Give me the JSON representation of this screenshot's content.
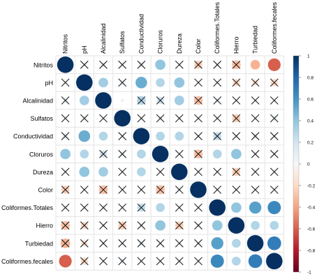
{
  "chart_data": {
    "type": "heatmap",
    "variables": [
      "Nitritos",
      "pH",
      "Alcalinidad",
      "Sulfatos",
      "Conductividad",
      "Cloruros",
      "Dureza",
      "Color",
      "Coliformes.Totales",
      "Hierro",
      "Turbiedad",
      "Coliformes.fecales"
    ],
    "matrix": [
      [
        1,
        0.05,
        0.1,
        -0.05,
        0.1,
        0.4,
        0.05,
        -0.25,
        0.05,
        -0.3,
        -0.35,
        -0.6
      ],
      [
        0.05,
        1,
        0.35,
        0.1,
        0.5,
        0.3,
        0.4,
        -0.05,
        0.05,
        -0.2,
        -0.15,
        -0.2
      ],
      [
        0.1,
        0.35,
        1,
        0.05,
        0.3,
        0.2,
        0.35,
        -0.3,
        0.1,
        0.05,
        0.05,
        0.05
      ],
      [
        -0.05,
        0.1,
        0.05,
        1,
        0.05,
        0.1,
        0.05,
        0.05,
        0.05,
        -0.25,
        0.05,
        0.1
      ],
      [
        0.1,
        0.5,
        0.3,
        0.05,
        1,
        0.3,
        0.3,
        0.05,
        0.25,
        -0.05,
        0.1,
        0.05
      ],
      [
        0.4,
        0.3,
        0.2,
        0.1,
        0.3,
        1,
        0.05,
        -0.3,
        0.3,
        0.4,
        0.05,
        0.05
      ],
      [
        0.05,
        0.4,
        0.35,
        0.05,
        0.3,
        0.05,
        1,
        0.05,
        0.05,
        -0.25,
        0.05,
        0.05
      ],
      [
        -0.25,
        -0.05,
        -0.3,
        0.05,
        0.05,
        -0.3,
        0.05,
        1,
        0.05,
        0.05,
        0.05,
        -0.05
      ],
      [
        0.05,
        0.05,
        0.1,
        0.05,
        0.25,
        0.3,
        0.05,
        0.05,
        1,
        0.4,
        0.55,
        0.65
      ],
      [
        -0.3,
        -0.2,
        0.05,
        -0.25,
        -0.05,
        0.4,
        -0.25,
        0.05,
        0.4,
        1,
        0.3,
        0.3
      ],
      [
        -0.35,
        -0.15,
        0.05,
        0.05,
        0.1,
        0.05,
        0.05,
        0.05,
        0.55,
        0.3,
        1,
        0.7
      ],
      [
        -0.6,
        -0.2,
        0.05,
        0.1,
        0.05,
        0.05,
        0.05,
        -0.05,
        0.65,
        0.3,
        0.7,
        1
      ]
    ],
    "not_significant": [
      [
        0,
        1
      ],
      [
        0,
        2
      ],
      [
        0,
        3
      ],
      [
        0,
        4
      ],
      [
        0,
        6
      ],
      [
        0,
        7
      ],
      [
        0,
        8
      ],
      [
        0,
        9
      ],
      [
        1,
        0
      ],
      [
        1,
        3
      ],
      [
        1,
        7
      ],
      [
        1,
        8
      ],
      [
        1,
        9
      ],
      [
        1,
        10
      ],
      [
        1,
        11
      ],
      [
        2,
        0
      ],
      [
        2,
        4
      ],
      [
        2,
        5
      ],
      [
        2,
        7
      ],
      [
        2,
        8
      ],
      [
        2,
        9
      ],
      [
        2,
        10
      ],
      [
        2,
        11
      ],
      [
        3,
        0
      ],
      [
        3,
        1
      ],
      [
        3,
        2
      ],
      [
        3,
        4
      ],
      [
        3,
        5
      ],
      [
        3,
        6
      ],
      [
        3,
        7
      ],
      [
        3,
        8
      ],
      [
        3,
        9
      ],
      [
        3,
        10
      ],
      [
        3,
        11
      ],
      [
        4,
        0
      ],
      [
        4,
        3
      ],
      [
        4,
        7
      ],
      [
        4,
        8
      ],
      [
        4,
        9
      ],
      [
        4,
        10
      ],
      [
        4,
        11
      ],
      [
        5,
        2
      ],
      [
        5,
        3
      ],
      [
        5,
        6
      ],
      [
        5,
        7
      ],
      [
        5,
        10
      ],
      [
        5,
        11
      ],
      [
        6,
        0
      ],
      [
        6,
        3
      ],
      [
        6,
        5
      ],
      [
        6,
        7
      ],
      [
        6,
        8
      ],
      [
        6,
        9
      ],
      [
        6,
        10
      ],
      [
        6,
        11
      ],
      [
        7,
        0
      ],
      [
        7,
        1
      ],
      [
        7,
        2
      ],
      [
        7,
        3
      ],
      [
        7,
        4
      ],
      [
        7,
        5
      ],
      [
        7,
        6
      ],
      [
        7,
        8
      ],
      [
        7,
        9
      ],
      [
        7,
        10
      ],
      [
        7,
        11
      ],
      [
        8,
        0
      ],
      [
        8,
        1
      ],
      [
        8,
        2
      ],
      [
        8,
        3
      ],
      [
        8,
        4
      ],
      [
        8,
        6
      ],
      [
        8,
        7
      ],
      [
        9,
        0
      ],
      [
        9,
        1
      ],
      [
        9,
        2
      ],
      [
        9,
        3
      ],
      [
        9,
        4
      ],
      [
        9,
        6
      ],
      [
        9,
        7
      ],
      [
        10,
        0
      ],
      [
        10,
        1
      ],
      [
        10,
        2
      ],
      [
        10,
        3
      ],
      [
        10,
        4
      ],
      [
        10,
        5
      ],
      [
        10,
        6
      ],
      [
        10,
        7
      ],
      [
        11,
        1
      ],
      [
        11,
        2
      ],
      [
        11,
        3
      ],
      [
        11,
        4
      ],
      [
        11,
        5
      ],
      [
        11,
        6
      ],
      [
        11,
        7
      ]
    ],
    "color_scale": {
      "range": [
        -1,
        1
      ],
      "ticks": [
        "1",
        "0.8",
        "0.6",
        "0.4",
        "0.2",
        "0",
        "-0.2",
        "-0.4",
        "-0.6",
        "-0.8",
        "-1"
      ],
      "colors": [
        "#67001f",
        "#b2182b",
        "#d6604d",
        "#f4a582",
        "#fddbc7",
        "#f7f7f7",
        "#d1e5f0",
        "#92c5de",
        "#4393c3",
        "#2166ac",
        "#053061"
      ]
    },
    "legend_position": "right",
    "grid": true
  }
}
